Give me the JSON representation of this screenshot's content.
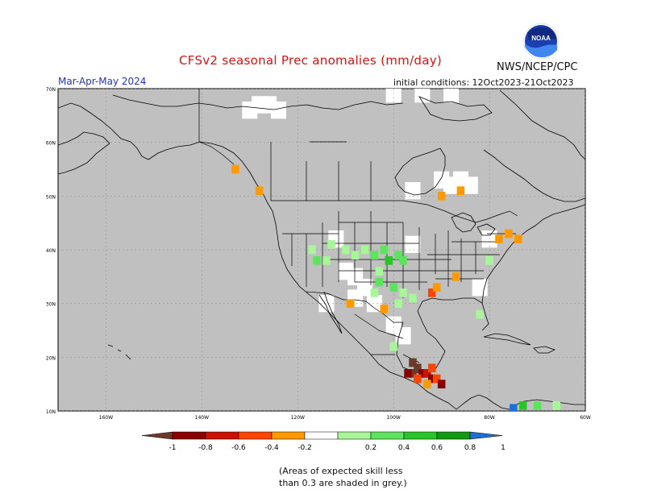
{
  "header": {
    "title": "CFSv2 seasonal Prec anomalies (mm/day)",
    "org": "NWS/NCEP/CPC",
    "logo_text": "NOAA",
    "season": "Mar-Apr-May 2024",
    "initial_conditions": "initial conditions: 12Oct2023-21Oct2023"
  },
  "map": {
    "lat_labels": [
      "70N",
      "60N",
      "50N",
      "40N",
      "30N",
      "20N",
      "10N"
    ],
    "lon_labels": [
      "160W",
      "140W",
      "120W",
      "100W",
      "80W",
      "60W"
    ],
    "lat_values": [
      70,
      60,
      50,
      40,
      30,
      20,
      10
    ],
    "lon_values": [
      -160,
      -140,
      -120,
      -100,
      -80,
      -60
    ],
    "extent": {
      "lon_min": -170,
      "lon_max": -60,
      "lat_min": 10,
      "lat_max": 70
    },
    "grey_meaning": "skill < 0.3"
  },
  "legend": {
    "tick_labels": [
      "-1",
      "-0.8",
      "-0.6",
      "-0.4",
      "-0.2",
      "0.2",
      "0.4",
      "0.6",
      "0.8",
      "1"
    ],
    "colors": {
      "lt_m1": "#6b3a2a",
      "m1_m08": "#8b0000",
      "m08_m06": "#cc1100",
      "m06_m04": "#ff4400",
      "m04_m02": "#ff9900",
      "m02_p02": "#ffffff",
      "p02_p04": "#a8f59a",
      "p04_p06": "#5de35d",
      "p06_p08": "#28c428",
      "p08_p1": "#119911",
      "gt_1": "#1e6fd6"
    }
  },
  "footnote": {
    "line1": "(Areas of expected skill less",
    "line2": "than 0.3 are shaded in grey.)"
  },
  "anomaly_cells": [
    {
      "lon": -96,
      "lat": 19,
      "v": -1.1
    },
    {
      "lon": -95,
      "lat": 18,
      "v": -1.1
    },
    {
      "lon": -96,
      "lat": 17,
      "v": -1.1
    },
    {
      "lon": -97,
      "lat": 17,
      "v": -0.9
    },
    {
      "lon": -94,
      "lat": 17,
      "v": -0.9
    },
    {
      "lon": -93,
      "lat": 17,
      "v": -0.7
    },
    {
      "lon": -92,
      "lat": 16,
      "v": -0.9
    },
    {
      "lon": -91,
      "lat": 16,
      "v": -0.5
    },
    {
      "lon": -92,
      "lat": 18,
      "v": -0.5
    },
    {
      "lon": -90,
      "lat": 15,
      "v": -0.9
    },
    {
      "lon": -95,
      "lat": 16,
      "v": -0.5
    },
    {
      "lon": -93,
      "lat": 15,
      "v": -0.3
    },
    {
      "lon": -92,
      "lat": 32,
      "v": -0.5
    },
    {
      "lon": -91,
      "lat": 33,
      "v": -0.3
    },
    {
      "lon": -87,
      "lat": 35,
      "v": -0.3
    },
    {
      "lon": -78,
      "lat": 42,
      "v": -0.3
    },
    {
      "lon": -76,
      "lat": 43,
      "v": -0.3
    },
    {
      "lon": -74,
      "lat": 42,
      "v": -0.3
    },
    {
      "lon": -102,
      "lat": 29,
      "v": -0.3
    },
    {
      "lon": -109,
      "lat": 30,
      "v": -0.3
    },
    {
      "lon": -90,
      "lat": 50,
      "v": -0.3
    },
    {
      "lon": -128,
      "lat": 51,
      "v": -0.3
    },
    {
      "lon": -133,
      "lat": 55,
      "v": -0.3
    },
    {
      "lon": -86,
      "lat": 51,
      "v": -0.3
    },
    {
      "lon": -110,
      "lat": 40,
      "v": 0.3
    },
    {
      "lon": -108,
      "lat": 39,
      "v": 0.3
    },
    {
      "lon": -106,
      "lat": 40,
      "v": 0.3
    },
    {
      "lon": -104,
      "lat": 39,
      "v": 0.5
    },
    {
      "lon": -102,
      "lat": 40,
      "v": 0.5
    },
    {
      "lon": -101,
      "lat": 38,
      "v": 0.7
    },
    {
      "lon": -99,
      "lat": 39,
      "v": 0.5
    },
    {
      "lon": -98,
      "lat": 38,
      "v": 0.5
    },
    {
      "lon": -103,
      "lat": 36,
      "v": 0.3
    },
    {
      "lon": -103,
      "lat": 34,
      "v": 0.5
    },
    {
      "lon": -100,
      "lat": 33,
      "v": 0.5
    },
    {
      "lon": -98,
      "lat": 32,
      "v": 0.3
    },
    {
      "lon": -96,
      "lat": 31,
      "v": 0.3
    },
    {
      "lon": -104,
      "lat": 32,
      "v": 0.3
    },
    {
      "lon": -99,
      "lat": 30,
      "v": 0.3
    },
    {
      "lon": -113,
      "lat": 41,
      "v": 0.3
    },
    {
      "lon": -117,
      "lat": 40,
      "v": 0.3
    },
    {
      "lon": -116,
      "lat": 38,
      "v": 0.5
    },
    {
      "lon": -114,
      "lat": 38,
      "v": 0.3
    },
    {
      "lon": -82,
      "lat": 28,
      "v": 0.3
    },
    {
      "lon": -80,
      "lat": 38,
      "v": 0.3
    },
    {
      "lon": -100,
      "lat": 22,
      "v": 0.3
    },
    {
      "lon": -73,
      "lat": 11,
      "v": 0.7
    },
    {
      "lon": -70,
      "lat": 11,
      "v": 0.5
    },
    {
      "lon": -66,
      "lat": 11,
      "v": 0.3
    },
    {
      "lon": -75,
      "lat": 10.5,
      "v": 1.1
    }
  ],
  "white_cells": [
    {
      "lon": -128,
      "lat": 67
    },
    {
      "lon": -126,
      "lat": 67
    },
    {
      "lon": -124,
      "lat": 66
    },
    {
      "lon": -130,
      "lat": 66
    },
    {
      "lon": -90,
      "lat": 53
    },
    {
      "lon": -88,
      "lat": 52
    },
    {
      "lon": -86,
      "lat": 53
    },
    {
      "lon": -84,
      "lat": 52
    },
    {
      "lon": -110,
      "lat": 36
    },
    {
      "lon": -108,
      "lat": 35
    },
    {
      "lon": -106,
      "lat": 33
    },
    {
      "lon": -108,
      "lat": 31
    },
    {
      "lon": -104,
      "lat": 30
    },
    {
      "lon": -96,
      "lat": 41
    },
    {
      "lon": -112,
      "lat": 42
    },
    {
      "lon": -100,
      "lat": 26
    },
    {
      "lon": -98,
      "lat": 24
    },
    {
      "lon": -114,
      "lat": 30
    },
    {
      "lon": -82,
      "lat": 33
    },
    {
      "lon": -100,
      "lat": 69
    },
    {
      "lon": -94,
      "lat": 69
    },
    {
      "lon": -88,
      "lat": 69
    },
    {
      "lon": -96,
      "lat": 51
    },
    {
      "lon": -80,
      "lat": 42
    }
  ]
}
